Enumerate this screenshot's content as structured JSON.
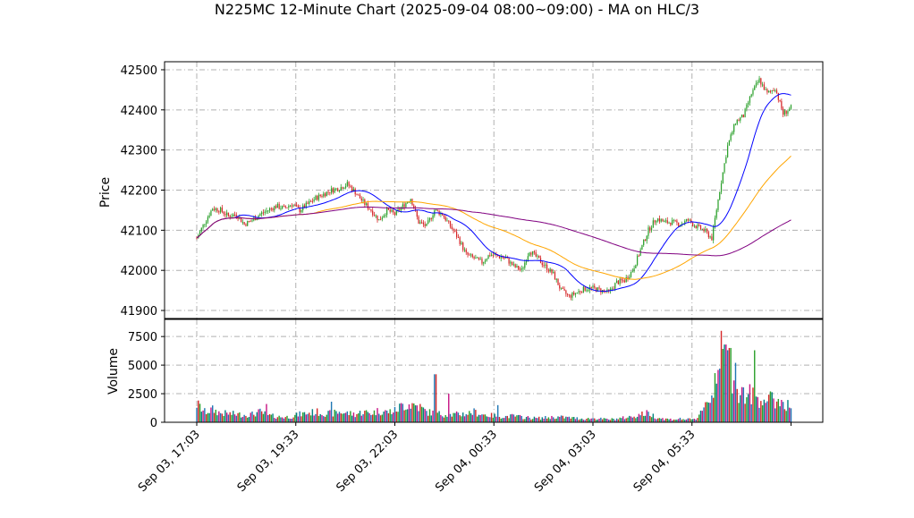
{
  "chart_data": {
    "type": "candlestick",
    "title": "N225MC 12-Minute Chart (2025-09-04 08:00~09:00) - MA on HLC/3",
    "price_panel": {
      "ylabel": "Price",
      "ylim": [
        41880,
        42520
      ],
      "yticks": [
        41900,
        42000,
        42100,
        42200,
        42300,
        42400,
        42500
      ],
      "grid": true
    },
    "volume_panel": {
      "ylabel": "Volume",
      "ylim": [
        0,
        9000
      ],
      "yticks": [
        0,
        2500,
        5000,
        7500
      ],
      "grid": true
    },
    "x_tick_labels": [
      "Sep 03, 17:03",
      "Sep 03, 19:33",
      "Sep 03, 22:03",
      "Sep 04, 00:33",
      "Sep 04, 03:03",
      "Sep 04, 05:33"
    ],
    "x_tick_positions": [
      0,
      12.5,
      25,
      37.5,
      50,
      62.5
    ],
    "bar_count": 76,
    "colors": {
      "up": "#2ca02c",
      "down": "#d62728",
      "ma_fast": "#0000ff",
      "ma_mid": "#ffa500",
      "ma_slow": "#800080",
      "grid": "#b0b0b0"
    },
    "price_anchors": [
      [
        0,
        42080
      ],
      [
        1,
        42120
      ],
      [
        2,
        42155
      ],
      [
        3,
        42150
      ],
      [
        4,
        42135
      ],
      [
        5,
        42140
      ],
      [
        6,
        42115
      ],
      [
        7,
        42125
      ],
      [
        8,
        42140
      ],
      [
        9,
        42150
      ],
      [
        10,
        42160
      ],
      [
        11,
        42155
      ],
      [
        12,
        42165
      ],
      [
        13,
        42150
      ],
      [
        14,
        42165
      ],
      [
        15,
        42180
      ],
      [
        16,
        42190
      ],
      [
        17,
        42200
      ],
      [
        18,
        42205
      ],
      [
        19,
        42215
      ],
      [
        20,
        42195
      ],
      [
        21,
        42170
      ],
      [
        22,
        42150
      ],
      [
        23,
        42125
      ],
      [
        24,
        42150
      ],
      [
        25,
        42140
      ],
      [
        26,
        42160
      ],
      [
        27,
        42180
      ],
      [
        28,
        42120
      ],
      [
        29,
        42110
      ],
      [
        30,
        42150
      ],
      [
        31,
        42140
      ],
      [
        32,
        42110
      ],
      [
        33,
        42080
      ],
      [
        34,
        42040
      ],
      [
        35,
        42030
      ],
      [
        36,
        42020
      ],
      [
        37,
        42040
      ],
      [
        38,
        42035
      ],
      [
        39,
        42030
      ],
      [
        40,
        42010
      ],
      [
        41,
        42000
      ],
      [
        42,
        42050
      ],
      [
        43,
        42030
      ],
      [
        44,
        42010
      ],
      [
        45,
        41990
      ],
      [
        46,
        41950
      ],
      [
        47,
        41935
      ],
      [
        48,
        41945
      ],
      [
        49,
        41955
      ],
      [
        50,
        41955
      ],
      [
        51,
        41950
      ],
      [
        52,
        41945
      ],
      [
        53,
        41970
      ],
      [
        54,
        41975
      ],
      [
        55,
        42000
      ],
      [
        56,
        42050
      ],
      [
        57,
        42100
      ],
      [
        58,
        42130
      ],
      [
        59,
        42120
      ],
      [
        60,
        42120
      ],
      [
        61,
        42115
      ],
      [
        62,
        42125
      ],
      [
        63,
        42110
      ],
      [
        64,
        42100
      ],
      [
        65,
        42080
      ],
      [
        66,
        42200
      ],
      [
        67,
        42310
      ],
      [
        68,
        42370
      ],
      [
        69,
        42385
      ],
      [
        70,
        42440
      ],
      [
        71,
        42475
      ],
      [
        72,
        42440
      ],
      [
        73,
        42455
      ],
      [
        74,
        42390
      ],
      [
        75,
        42405
      ]
    ],
    "volume_anchors": [
      [
        0,
        1600
      ],
      [
        1,
        900
      ],
      [
        2,
        1100
      ],
      [
        3,
        800
      ],
      [
        4,
        750
      ],
      [
        5,
        700
      ],
      [
        6,
        650
      ],
      [
        7,
        700
      ],
      [
        8,
        900
      ],
      [
        9,
        600
      ],
      [
        10,
        500
      ],
      [
        11,
        450
      ],
      [
        12,
        500
      ],
      [
        13,
        700
      ],
      [
        14,
        800
      ],
      [
        15,
        900
      ],
      [
        16,
        800
      ],
      [
        17,
        750
      ],
      [
        18,
        900
      ],
      [
        19,
        800
      ],
      [
        20,
        700
      ],
      [
        21,
        900
      ],
      [
        22,
        800
      ],
      [
        23,
        1000
      ],
      [
        24,
        900
      ],
      [
        25,
        1000
      ],
      [
        26,
        1500
      ],
      [
        27,
        1600
      ],
      [
        28,
        1400
      ],
      [
        29,
        900
      ],
      [
        30,
        800
      ],
      [
        31,
        700
      ],
      [
        32,
        650
      ],
      [
        33,
        700
      ],
      [
        34,
        750
      ],
      [
        35,
        900
      ],
      [
        36,
        700
      ],
      [
        37,
        600
      ],
      [
        38,
        550
      ],
      [
        39,
        500
      ],
      [
        40,
        550
      ],
      [
        41,
        450
      ],
      [
        42,
        400
      ],
      [
        43,
        350
      ],
      [
        44,
        400
      ],
      [
        45,
        450
      ],
      [
        46,
        450
      ],
      [
        47,
        400
      ],
      [
        48,
        350
      ],
      [
        49,
        300
      ],
      [
        50,
        350
      ],
      [
        51,
        300
      ],
      [
        52,
        250
      ],
      [
        53,
        300
      ],
      [
        54,
        400
      ],
      [
        55,
        500
      ],
      [
        56,
        700
      ],
      [
        57,
        800
      ],
      [
        58,
        450
      ],
      [
        59,
        300
      ],
      [
        60,
        250
      ],
      [
        61,
        300
      ],
      [
        62,
        250
      ],
      [
        63,
        250
      ],
      [
        64,
        1500
      ],
      [
        65,
        2200
      ],
      [
        66,
        6000
      ],
      [
        67,
        5800
      ],
      [
        68,
        3000
      ],
      [
        69,
        2500
      ],
      [
        70,
        2400
      ],
      [
        71,
        2100
      ],
      [
        72,
        2000
      ],
      [
        73,
        1900
      ],
      [
        74,
        1800
      ],
      [
        75,
        1300
      ]
    ],
    "volume_spikes": [
      [
        30.1,
        4200
      ],
      [
        31.8,
        2500
      ],
      [
        17.0,
        1800
      ],
      [
        8.8,
        1600
      ],
      [
        65.4,
        4300
      ],
      [
        66.2,
        8000
      ],
      [
        66.7,
        6800
      ],
      [
        67.3,
        6500
      ],
      [
        68.0,
        5200
      ],
      [
        70.4,
        6300
      ],
      [
        38.0,
        1500
      ]
    ],
    "ma_periods": {
      "fast": 5,
      "mid": 15,
      "slow": 35
    }
  }
}
